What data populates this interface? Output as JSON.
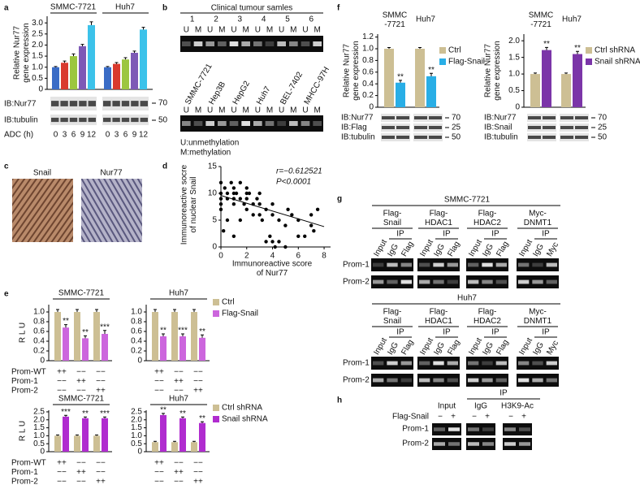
{
  "panels": {
    "labels": [
      "a",
      "b",
      "c",
      "d",
      "e",
      "f",
      "g",
      "h"
    ],
    "a": {
      "blot_rows": [
        "IB:Nur77",
        "IB:tubulin"
      ],
      "markers": [
        "70",
        "50"
      ]
    },
    "b": {
      "title": "Clinical tumour samles",
      "samples": [
        "1",
        "2",
        "3",
        "4",
        "5",
        "6"
      ],
      "lanes": [
        "U",
        "M"
      ],
      "cell_lines": [
        "SMMC-7721",
        "Hep3B",
        "HepG2",
        "Huh7",
        "BEL-7402",
        "MHCC-97H"
      ],
      "legend": [
        "U:unmethylation",
        "M:methylation"
      ]
    },
    "c": {
      "stains": [
        "Snail",
        "Nur77"
      ]
    },
    "e": {
      "conditions": [
        "Prom-WT",
        "Prom-1",
        "Prom-2"
      ],
      "signs": [
        [
          "++",
          "−−",
          "−−"
        ],
        [
          "−−",
          "++",
          "−−"
        ],
        [
          "−−",
          "−−",
          "++"
        ]
      ]
    },
    "f": {
      "left_blot": {
        "rows": [
          "IB:Nur77",
          "IB:Flag",
          "IB:tubulin"
        ],
        "markers": [
          "70",
          "25",
          "50"
        ]
      },
      "right_blot": {
        "rows": [
          "IB:Nur77",
          "IB:Snail",
          "IB:tubulin"
        ],
        "markers": [
          "70",
          "25",
          "50"
        ]
      }
    },
    "g": {
      "blocks": [
        {
          "title": "SMMC-7721",
          "columns": [
            "Flag-\nSnail",
            "Flag-\nHDAC1",
            "Flag-\nHDAC2",
            "Myc-\nDNMT1"
          ],
          "ip": "IP",
          "lanes": [
            [
              "Input",
              "IgG",
              "Flag"
            ],
            [
              "Input",
              "IgG",
              "Flag"
            ],
            [
              "Input",
              "IgG",
              "Flag"
            ],
            [
              "Input",
              "IgG",
              "Myc"
            ]
          ],
          "rows": [
            "Prom-1",
            "Prom-2"
          ]
        },
        {
          "title": "Huh7",
          "columns": [
            "Flag-\nSnail",
            "Flag-\nHDAC1",
            "Flag-\nHDAC2",
            "Myc-\nDNMT1"
          ],
          "ip": "IP",
          "lanes": [
            [
              "Input",
              "IgG",
              "Flag"
            ],
            [
              "Input",
              "IgG",
              "Flag"
            ],
            [
              "Input",
              "IgG",
              "Flag"
            ],
            [
              "Input",
              "IgG",
              "Myc"
            ]
          ],
          "rows": [
            "Prom-1",
            "Prom-2"
          ]
        }
      ]
    },
    "h": {
      "ip": "IP",
      "lanes": [
        "Input",
        "IgG",
        "H3K9-Ac"
      ],
      "factor": "Flag-Snail",
      "signs": [
        "−",
        "+"
      ],
      "rows": [
        "Prom-1",
        "Prom-2"
      ]
    }
  },
  "chart_data": [
    {
      "type": "bar",
      "ylabel": "Relative Nur77\ngene expression",
      "xlabel": "ADC (h)",
      "ylim": [
        0,
        3.3
      ],
      "yticks": [
        0,
        0.5,
        {
          "value": 1,
          "label": "1.0"
        },
        1.5,
        {
          "value": 2,
          "label": "2.0"
        },
        2.5,
        {
          "value": 3,
          "label": "3.0"
        }
      ],
      "categories": [
        "0",
        "3",
        "6",
        "9",
        "12"
      ],
      "colors": [
        "#3a6cc6",
        "#d93a2e",
        "#9cc63f",
        "#7d59b6",
        "#3cc2ea"
      ],
      "series": [
        {
          "name": "SMMC-7721",
          "values": [
            1.0,
            1.2,
            1.5,
            1.95,
            2.9
          ],
          "errors": [
            0.03,
            0.08,
            0.1,
            0.08,
            0.15
          ]
        },
        {
          "name": "Huh7",
          "values": [
            1.0,
            1.15,
            1.35,
            1.65,
            2.7
          ],
          "errors": [
            0.03,
            0.06,
            0.08,
            0.08,
            0.1
          ]
        }
      ]
    },
    {
      "type": "scatter",
      "ylabel": "Immunoreactive socre\nof nuclear Snail",
      "xlabel": "Immunoreactive score\nof Nur77",
      "annotations": [
        "r=−0.612521",
        "P<0.0001"
      ],
      "xlim": [
        0,
        8.5
      ],
      "ylim": [
        0,
        15
      ],
      "xticks": [
        0,
        2,
        4,
        6,
        8
      ],
      "yticks": [
        0,
        5,
        10,
        15
      ],
      "x": [
        0,
        0,
        0,
        0,
        0,
        0.3,
        0.5,
        0.5,
        0.8,
        1,
        1,
        1,
        1,
        1.2,
        1.5,
        1.5,
        1.8,
        2,
        2,
        2,
        2,
        2.2,
        2.5,
        2.5,
        2.8,
        3,
        3,
        3,
        3.2,
        3.5,
        3.5,
        3.8,
        4,
        4,
        4,
        4.2,
        4.5,
        4.5,
        5,
        5,
        5.2,
        5.5,
        6,
        6,
        6.5,
        7,
        7,
        7.2,
        7.5,
        0.5,
        1,
        1.5,
        0.2
      ],
      "y": [
        10,
        12,
        9,
        8,
        7,
        11,
        10,
        9,
        12,
        10,
        9,
        8,
        11,
        10,
        9,
        12,
        8,
        10,
        9,
        7,
        11,
        10,
        8,
        6,
        9,
        8,
        6,
        10,
        5,
        7,
        1,
        2,
        1,
        6,
        8,
        0,
        5,
        1,
        0,
        4,
        7,
        6,
        5,
        2,
        2,
        6,
        4,
        3,
        7,
        5,
        2,
        5,
        3
      ],
      "fit_line": {
        "x": [
          0,
          8
        ],
        "y": [
          9.6,
          3.8
        ]
      },
      "color": "#000000"
    },
    {
      "type": "bar",
      "title": "SMMC-7721",
      "ylabel": "R L U",
      "ylim": [
        0,
        1.15
      ],
      "yticks": [
        0,
        0.2,
        0.4,
        0.6,
        0.8,
        {
          "value": 1,
          "label": "1.0"
        }
      ],
      "categories": [
        null,
        null,
        null
      ],
      "series": [
        {
          "color": "#cdbf94",
          "values": [
            1,
            1,
            1
          ],
          "errors": [
            0.05,
            0.05,
            0.05
          ]
        },
        {
          "color": "#cc66dd",
          "values": [
            0.68,
            0.46,
            0.55
          ],
          "errors": [
            0.06,
            0.05,
            0.07
          ],
          "significance": [
            "**",
            "**",
            "***"
          ]
        }
      ]
    },
    {
      "type": "bar",
      "title": "Huh7",
      "ylim": [
        0,
        1.15
      ],
      "legend": "right",
      "yticks": [
        0,
        0.2,
        0.4,
        0.6,
        0.8,
        {
          "value": 1,
          "label": "1.0"
        }
      ],
      "categories": [
        null,
        null,
        null
      ],
      "series": [
        {
          "name": "Ctrl",
          "color": "#cdbf94",
          "values": [
            1,
            1,
            1
          ],
          "errors": [
            0.05,
            0.05,
            0.05
          ]
        },
        {
          "name": "Flag-Snail",
          "color": "#cc66dd",
          "values": [
            0.5,
            0.5,
            0.47
          ],
          "errors": [
            0.05,
            0.05,
            0.06
          ],
          "significance": [
            "**",
            "***",
            "**"
          ]
        }
      ]
    },
    {
      "type": "bar",
      "title": "SMMC-7721",
      "ylabel": "R L U",
      "ylim": [
        0,
        2.6
      ],
      "yticks": [
        0,
        0.5,
        {
          "value": 1,
          "label": "1.0"
        },
        1.5,
        {
          "value": 2,
          "label": "2.0"
        },
        2.5
      ],
      "categories": [
        null,
        null,
        null
      ],
      "series": [
        {
          "color": "#cdbf94",
          "values": [
            1,
            1,
            1
          ],
          "errors": [
            0.05,
            0.05,
            0.05
          ]
        },
        {
          "color": "#b02ccf",
          "values": [
            2.2,
            2.1,
            2.1
          ],
          "errors": [
            0.08,
            0.08,
            0.08
          ],
          "significance": [
            "***",
            "**",
            "***"
          ]
        }
      ]
    },
    {
      "type": "bar",
      "title": "Huh7",
      "ylim": [
        0,
        2.6
      ],
      "legend": "right",
      "yticks": [
        0,
        0.5,
        {
          "value": 1,
          "label": "1.0"
        },
        1.5,
        {
          "value": 2,
          "label": "2.0"
        },
        2.5
      ],
      "categories": [
        null,
        null,
        null
      ],
      "series": [
        {
          "name": "Ctrl shRNA",
          "color": "#cdbf94",
          "values": [
            0.6,
            0.6,
            0.6
          ],
          "errors": [
            0.05,
            0.05,
            0.05
          ]
        },
        {
          "name": "Snail shRNA",
          "color": "#b02ccf",
          "values": [
            2.3,
            2.1,
            1.8
          ],
          "errors": [
            0.1,
            0.08,
            0.08
          ],
          "significance": [
            "**",
            "**",
            "**"
          ]
        }
      ]
    },
    {
      "type": "bar",
      "ylabel": "Relative Nur77\ngene expression",
      "ylim": [
        0,
        1.25
      ],
      "legend": "right",
      "yticks": [
        0,
        0.2,
        0.4,
        0.6,
        0.8,
        {
          "value": 1,
          "label": "1.0"
        },
        1.2
      ],
      "categories": [
        "SMMC\n-7721",
        "Huh7"
      ],
      "series": [
        {
          "name": "Ctrl",
          "color": "#cdbf94",
          "values": [
            1,
            1
          ],
          "errors": [
            0.02,
            0.02
          ]
        },
        {
          "name": "Flag-Snail",
          "color": "#29aee6",
          "values": [
            0.42,
            0.53
          ],
          "errors": [
            0.04,
            0.05
          ],
          "significance": [
            "**",
            "**"
          ]
        }
      ]
    },
    {
      "type": "bar",
      "ylabel": "Relative Nur77\ngene expression",
      "ylim": [
        0,
        2.2
      ],
      "legend": "right",
      "yticks": [
        0,
        0.5,
        {
          "value": 1,
          "label": "1.0"
        },
        1.5,
        {
          "value": 2,
          "label": "2.0"
        }
      ],
      "categories": [
        "SMMC\n-7721",
        "Huh7"
      ],
      "series": [
        {
          "name": "Ctrl shRNA",
          "color": "#cdbf94",
          "values": [
            1,
            1
          ],
          "errors": [
            0.03,
            0.03
          ]
        },
        {
          "name": "Snail shRNA",
          "color": "#7b35a8",
          "values": [
            1.72,
            1.6
          ],
          "errors": [
            0.08,
            0.08
          ],
          "significance": [
            "**",
            "**"
          ]
        }
      ]
    }
  ]
}
